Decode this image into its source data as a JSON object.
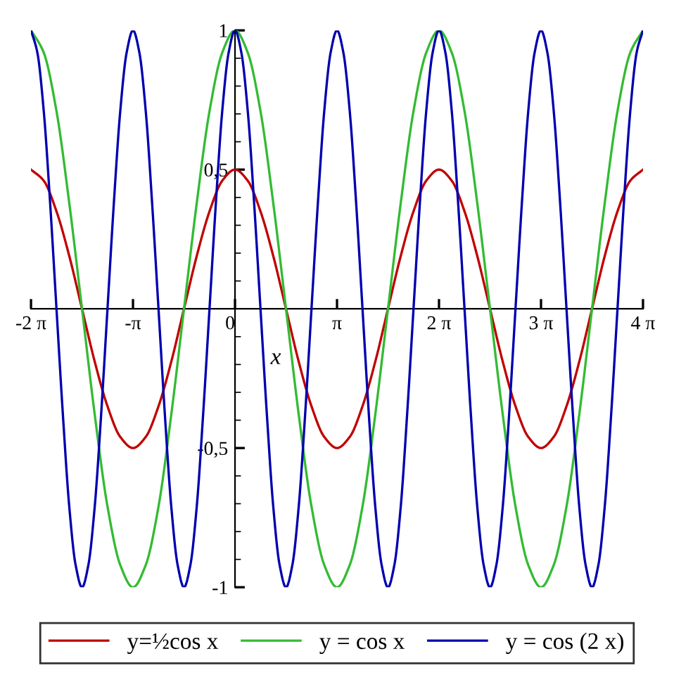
{
  "chart_data": {
    "type": "line",
    "xlabel": "x",
    "xlim": [
      -6.283,
      12.566
    ],
    "ylim": [
      -1,
      1
    ],
    "xticks": [
      {
        "value": -6.283,
        "label": "-2 π"
      },
      {
        "value": -3.142,
        "label": "-π"
      },
      {
        "value": 0,
        "label": "0"
      },
      {
        "value": 3.142,
        "label": "π"
      },
      {
        "value": 6.283,
        "label": "2 π"
      },
      {
        "value": 9.425,
        "label": "3 π"
      },
      {
        "value": 12.566,
        "label": "4 π"
      }
    ],
    "yticks": [
      {
        "value": -1,
        "label": "-1"
      },
      {
        "value": -0.5,
        "label": "-0,5"
      },
      {
        "value": 0.5,
        "label": "0,5"
      },
      {
        "value": 1,
        "label": "1"
      }
    ],
    "grid": false,
    "legend": "bottom",
    "marker": "none",
    "line_style": "solid",
    "series": [
      {
        "name": "y=½cos x",
        "color": "#c00000",
        "x": [
          -6.283,
          -5.89,
          -5.498,
          -5.105,
          -4.712,
          -4.32,
          -3.927,
          -3.534,
          -3.142,
          -2.749,
          -2.356,
          -1.963,
          -1.571,
          -1.178,
          -0.785,
          -0.393,
          0,
          0.393,
          0.785,
          1.178,
          1.571,
          1.963,
          2.356,
          2.749,
          3.142,
          3.534,
          3.927,
          4.32,
          4.712,
          5.105,
          5.498,
          5.89,
          6.283,
          6.676,
          7.069,
          7.461,
          7.854,
          8.247,
          8.639,
          9.032,
          9.425,
          9.817,
          10.21,
          10.603,
          10.996,
          11.388,
          11.781,
          12.174,
          12.566
        ],
        "values": [
          0.5,
          0.46,
          0.35,
          0.19,
          0,
          -0.19,
          -0.35,
          -0.46,
          -0.5,
          -0.46,
          -0.35,
          -0.19,
          0,
          0.19,
          0.35,
          0.46,
          0.5,
          0.46,
          0.35,
          0.19,
          0,
          -0.19,
          -0.35,
          -0.46,
          -0.5,
          -0.46,
          -0.35,
          -0.19,
          0,
          0.19,
          0.35,
          0.46,
          0.5,
          0.46,
          0.35,
          0.19,
          0,
          -0.19,
          -0.35,
          -0.46,
          -0.5,
          -0.46,
          -0.35,
          -0.19,
          0,
          0.19,
          0.35,
          0.46,
          0.5
        ]
      },
      {
        "name": "y = cos x",
        "color": "#33bb33",
        "x": [
          -6.283,
          -5.89,
          -5.498,
          -5.105,
          -4.712,
          -4.32,
          -3.927,
          -3.534,
          -3.142,
          -2.749,
          -2.356,
          -1.963,
          -1.571,
          -1.178,
          -0.785,
          -0.393,
          0,
          0.393,
          0.785,
          1.178,
          1.571,
          1.963,
          2.356,
          2.749,
          3.142,
          3.534,
          3.927,
          4.32,
          4.712,
          5.105,
          5.498,
          5.89,
          6.283,
          6.676,
          7.069,
          7.461,
          7.854,
          8.247,
          8.639,
          9.032,
          9.425,
          9.817,
          10.21,
          10.603,
          10.996,
          11.388,
          11.781,
          12.174,
          12.566
        ],
        "values": [
          1,
          0.92,
          0.71,
          0.38,
          0,
          -0.38,
          -0.71,
          -0.92,
          -1,
          -0.92,
          -0.71,
          -0.38,
          0,
          0.38,
          0.71,
          0.92,
          1,
          0.92,
          0.71,
          0.38,
          0,
          -0.38,
          -0.71,
          -0.92,
          -1,
          -0.92,
          -0.71,
          -0.38,
          0,
          0.38,
          0.71,
          0.92,
          1,
          0.92,
          0.71,
          0.38,
          0,
          -0.38,
          -0.71,
          -0.92,
          -1,
          -0.92,
          -0.71,
          -0.38,
          0,
          0.38,
          0.71,
          0.92,
          1
        ]
      },
      {
        "name": "y = cos (2 x)",
        "color": "#0000b0",
        "x": [
          -6.283,
          -6.087,
          -5.89,
          -5.694,
          -5.498,
          -5.301,
          -5.105,
          -4.909,
          -4.712,
          -4.516,
          -4.32,
          -4.123,
          -3.927,
          -3.731,
          -3.534,
          -3.338,
          -3.142,
          -2.945,
          -2.749,
          -2.553,
          -2.356,
          -2.16,
          -1.963,
          -1.767,
          -1.571,
          -1.374,
          -1.178,
          -0.982,
          -0.785,
          -0.589,
          -0.393,
          -0.196,
          0,
          0.196,
          0.393,
          0.589,
          0.785,
          0.982,
          1.178,
          1.374,
          1.571,
          1.767,
          1.963,
          2.16,
          2.356,
          2.553,
          2.749,
          2.945,
          3.142,
          3.338,
          3.534,
          3.731,
          3.927,
          4.123,
          4.32,
          4.516,
          4.712,
          4.909,
          5.105,
          5.301,
          5.498,
          5.694,
          5.89,
          6.087,
          6.283,
          6.48,
          6.676,
          6.872,
          7.069,
          7.265,
          7.461,
          7.658,
          7.854,
          8.05,
          8.247,
          8.443,
          8.639,
          8.836,
          9.032,
          9.228,
          9.425,
          9.621,
          9.817,
          10.014,
          10.21,
          10.407,
          10.603,
          10.799,
          10.996,
          11.192,
          11.388,
          11.585,
          11.781,
          11.977,
          12.174,
          12.37,
          12.566
        ],
        "values": [
          1,
          0.92,
          0.71,
          0.38,
          0,
          -0.38,
          -0.71,
          -0.92,
          -1,
          -0.92,
          -0.71,
          -0.38,
          0,
          0.38,
          0.71,
          0.92,
          1,
          0.92,
          0.71,
          0.38,
          0,
          -0.38,
          -0.71,
          -0.92,
          -1,
          -0.92,
          -0.71,
          -0.38,
          0,
          0.38,
          0.71,
          0.92,
          1,
          0.92,
          0.71,
          0.38,
          0,
          -0.38,
          -0.71,
          -0.92,
          -1,
          -0.92,
          -0.71,
          -0.38,
          0,
          0.38,
          0.71,
          0.92,
          1,
          0.92,
          0.71,
          0.38,
          0,
          -0.38,
          -0.71,
          -0.92,
          -1,
          -0.92,
          -0.71,
          -0.38,
          0,
          0.38,
          0.71,
          0.92,
          1,
          0.92,
          0.71,
          0.38,
          0,
          -0.38,
          -0.71,
          -0.92,
          -1,
          -0.92,
          -0.71,
          -0.38,
          0,
          0.38,
          0.71,
          0.92,
          1,
          0.92,
          0.71,
          0.38,
          0,
          -0.38,
          -0.71,
          -0.92,
          -1,
          -0.92,
          -0.71,
          -0.38,
          0,
          0.38,
          0.71,
          0.92,
          1
        ]
      }
    ]
  }
}
